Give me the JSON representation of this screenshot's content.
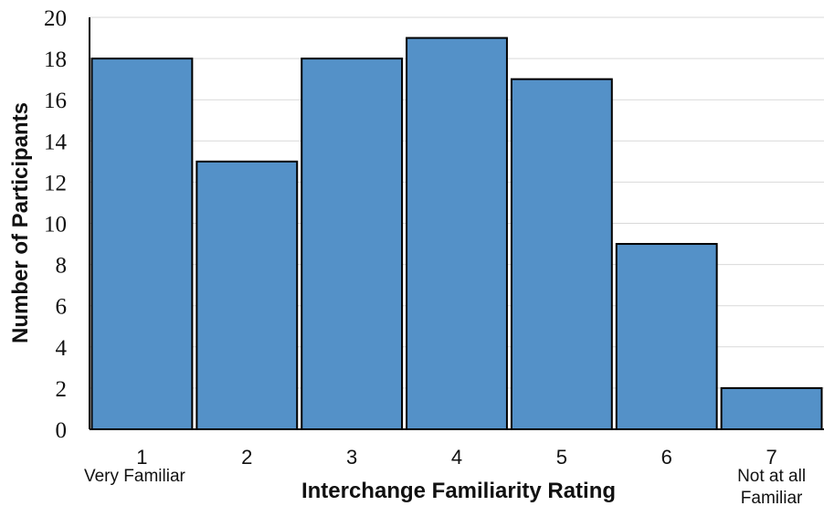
{
  "chart_data": {
    "type": "bar",
    "title": "",
    "xlabel": "Interchange Familiarity Rating",
    "ylabel": "Number of Participants",
    "categories": [
      "1",
      "2",
      "3",
      "4",
      "5",
      "6",
      "7"
    ],
    "category_sublabels": [
      [
        "Very Familiar"
      ],
      [],
      [],
      [],
      [],
      [],
      [
        "Not at all",
        "Familiar"
      ]
    ],
    "values": [
      18,
      13,
      18,
      19,
      17,
      9,
      2
    ],
    "ylim": [
      0,
      20
    ],
    "yticks": [
      0,
      2,
      4,
      6,
      8,
      10,
      12,
      14,
      16,
      18,
      20
    ],
    "grid": true,
    "legend": "none",
    "colors": {
      "bar_fill": "#5491c8",
      "bar_stroke": "#000000",
      "grid": "#d9d9d9",
      "axis": "#000000"
    }
  }
}
